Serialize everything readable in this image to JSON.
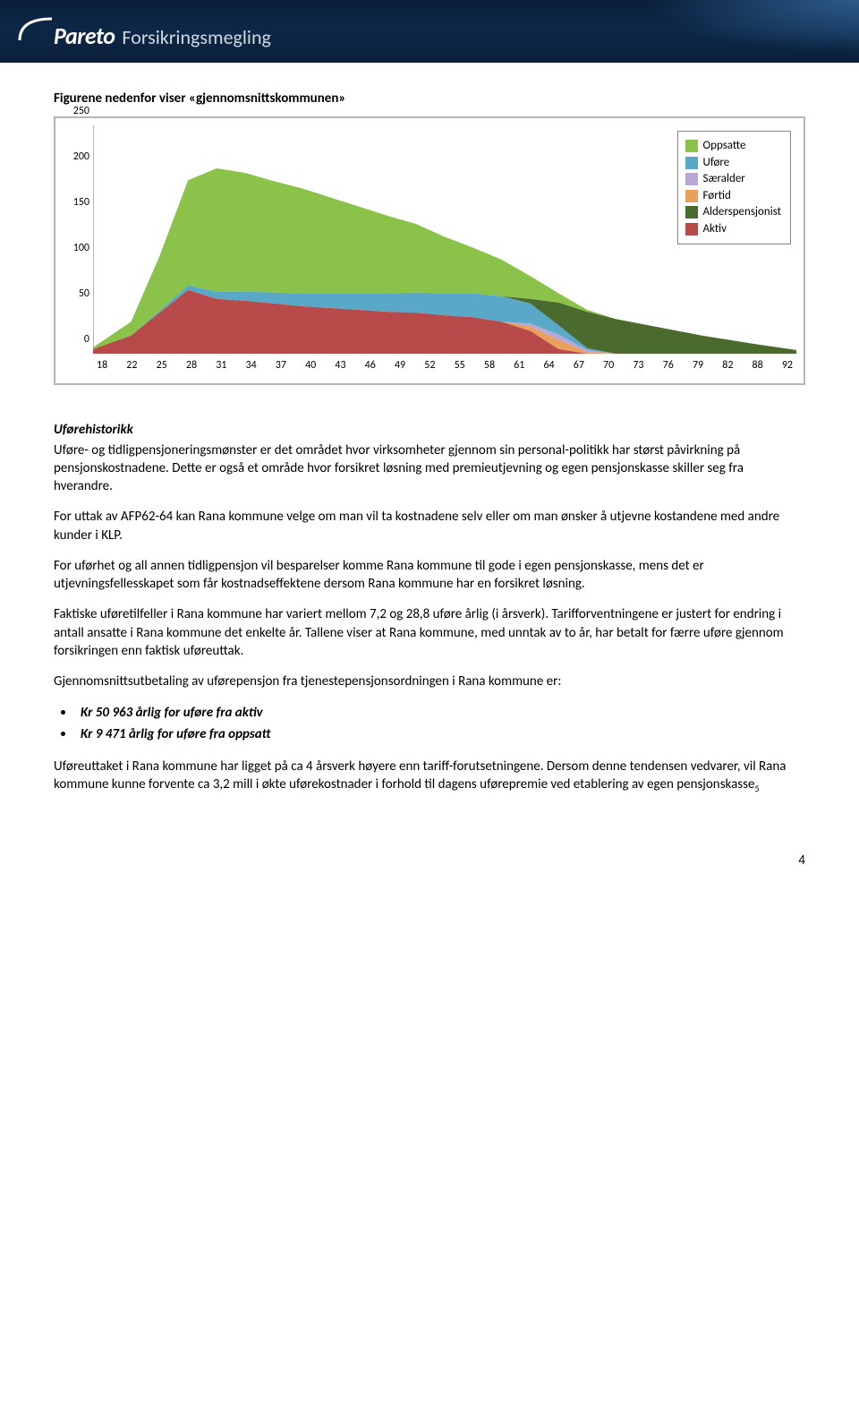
{
  "header": {
    "brand_bold": "Pareto",
    "brand_light": "Forsikringsmegling"
  },
  "title": "Figurene nedenfor viser «gjennomsnittskommunen»",
  "chart": {
    "type": "stacked-area",
    "x_ticks": [
      "18",
      "22",
      "25",
      "28",
      "31",
      "34",
      "37",
      "40",
      "43",
      "46",
      "49",
      "52",
      "55",
      "58",
      "61",
      "64",
      "67",
      "70",
      "73",
      "76",
      "79",
      "82",
      "88",
      "92"
    ],
    "y_ticks": [
      "0",
      "50",
      "100",
      "150",
      "200",
      "250"
    ],
    "ylim": [
      0,
      250
    ],
    "xlim": [
      18,
      92
    ],
    "background_color": "#ffffff",
    "axis_color": "#888888",
    "tick_fontsize": 12,
    "legend": [
      {
        "label": "Oppsatte",
        "color": "#8bc34a"
      },
      {
        "label": "Uføre",
        "color": "#5aa8c8"
      },
      {
        "label": "Særalder",
        "color": "#b8a8d8"
      },
      {
        "label": "Førtid",
        "color": "#e8a05a"
      },
      {
        "label": "Alderspensjonist",
        "color": "#4a6a2e"
      },
      {
        "label": "Aktiv",
        "color": "#b84a4a"
      }
    ],
    "series": {
      "x": [
        18,
        22,
        25,
        28,
        31,
        34,
        37,
        40,
        43,
        46,
        49,
        52,
        55,
        58,
        61,
        64,
        67,
        70,
        73,
        76,
        79,
        82,
        88,
        92
      ],
      "aktiv": [
        5,
        20,
        45,
        70,
        60,
        58,
        55,
        52,
        50,
        48,
        46,
        45,
        42,
        40,
        35,
        25,
        5,
        0,
        0,
        0,
        0,
        0,
        0,
        0
      ],
      "fortid": [
        0,
        0,
        0,
        0,
        0,
        0,
        0,
        0,
        0,
        0,
        0,
        0,
        0,
        0,
        0,
        5,
        10,
        2,
        0,
        0,
        0,
        0,
        0,
        0
      ],
      "saeralder": [
        0,
        0,
        0,
        0,
        0,
        0,
        0,
        0,
        0,
        0,
        0,
        0,
        0,
        0,
        0,
        3,
        6,
        2,
        0,
        0,
        0,
        0,
        0,
        0
      ],
      "ufore": [
        0,
        0,
        2,
        5,
        8,
        10,
        12,
        14,
        16,
        18,
        20,
        22,
        24,
        26,
        28,
        22,
        10,
        2,
        0,
        0,
        0,
        0,
        0,
        0
      ],
      "alderspensjonist": [
        0,
        0,
        0,
        0,
        0,
        0,
        0,
        0,
        0,
        0,
        0,
        0,
        0,
        0,
        0,
        5,
        25,
        40,
        38,
        32,
        26,
        20,
        10,
        4
      ],
      "oppsatte": [
        2,
        15,
        60,
        115,
        135,
        130,
        122,
        115,
        105,
        95,
        85,
        75,
        62,
        50,
        40,
        25,
        10,
        2,
        0,
        0,
        0,
        0,
        0,
        0
      ]
    },
    "colors": {
      "aktiv": "#b84a4a",
      "fortid": "#e8a05a",
      "saeralder": "#b8a8d8",
      "ufore": "#5aa8c8",
      "alderspensjonist": "#4a6a2e",
      "oppsatte": "#8bc34a"
    }
  },
  "subheading": "Uførehistorikk",
  "paras": {
    "p1": "Uføre- og tidligpensjoneringsmønster er det området hvor virksomheter gjennom sin personal-politikk har størst påvirkning på pensjonskostnadene. Dette er også et område hvor forsikret løsning med premieutjevning og egen pensjonskasse skiller seg fra hverandre.",
    "p2": "For uttak av AFP62-64 kan Rana kommune velge om man vil ta kostnadene selv eller om man ønsker å utjevne kostandene med andre kunder i KLP.",
    "p3": "For uførhet og all annen tidligpensjon vil besparelser komme Rana kommune til gode i egen pensjonskasse, mens det er utjevningsfellesskapet som får kostnadseffektene dersom Rana kommune har en forsikret løsning.",
    "p4": "Faktiske uføretilfeller i Rana kommune har variert mellom 7,2 og 28,8 uføre årlig (i årsverk). Tarifforventningene er justert for endring i antall ansatte i Rana kommune det enkelte år. Tallene viser at Rana kommune, med unntak av to år, har betalt for færre uføre gjennom forsikringen enn faktisk uføreuttak.",
    "p5": "Gjennomsnittsutbetaling av uførepensjon fra tjenestepensjonsordningen i Rana kommune er:",
    "p6": "Uføreuttaket i Rana kommune har ligget på ca 4 årsverk høyere enn tariff-forutsetningene. Dersom denne tendensen vedvarer, vil Rana kommune kunne forvente ca 3,2 mill i økte uførekostnader i forhold til dagens uførepremie ved etablering av egen pensjonskasse"
  },
  "bullets": [
    "Kr 50 963 årlig for uføre fra aktiv",
    "Kr  9 471 årlig for uføre fra oppsatt"
  ],
  "footnote": "5",
  "pagenum": "4"
}
